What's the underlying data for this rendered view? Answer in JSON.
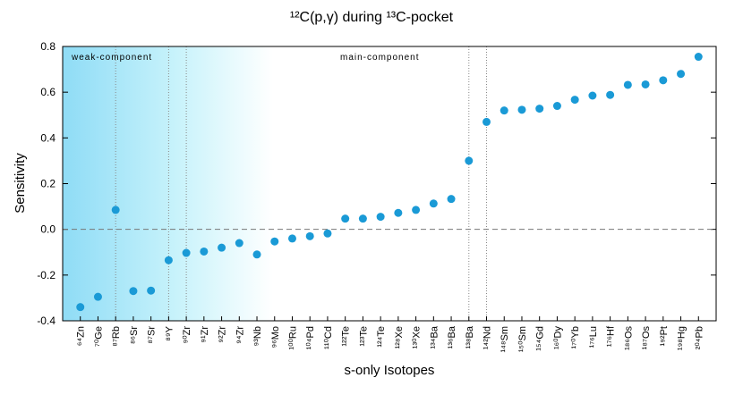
{
  "chart_data": {
    "type": "scatter",
    "title": "¹²C(p,γ) during ¹³C-pocket",
    "x_label": "s-only Isotopes",
    "y_label": "Sensitivity",
    "annotations": [
      "weak-component",
      "main-component"
    ],
    "categories": [
      "⁶⁴Zn",
      "⁷⁰Ge",
      "⁸⁷Rb",
      "⁸⁶Sr",
      "⁸⁷Sr",
      "⁸⁹Y",
      "⁹⁰Zr",
      "⁹¹Zr",
      "⁹²Zr",
      "⁹⁴Zr",
      "⁹³Nb",
      "⁹⁶Mo",
      "¹⁰⁰Ru",
      "¹⁰⁴Pd",
      "¹¹⁰Cd",
      "¹²²Te",
      "¹²³Te",
      "¹²⁴Te",
      "¹²⁸Xe",
      "¹³⁰Xe",
      "¹³⁴Ba",
      "¹³⁶Ba",
      "¹³⁸Ba",
      "¹⁴²Nd",
      "¹⁴⁸Sm",
      "¹⁵⁰Sm",
      "¹⁵⁴Gd",
      "¹⁶⁰Dy",
      "¹⁷⁰Yb",
      "¹⁷⁶Lu",
      "¹⁷⁶Hf",
      "¹⁸⁶Os",
      "¹⁸⁷Os",
      "¹⁹²Pt",
      "¹⁹⁸Hg",
      "²⁰⁴Pb"
    ],
    "values": [
      -0.34,
      -0.295,
      0.085,
      -0.27,
      -0.268,
      -0.135,
      -0.103,
      -0.097,
      -0.08,
      -0.06,
      -0.11,
      -0.053,
      -0.04,
      -0.03,
      -0.018,
      0.047,
      0.047,
      0.055,
      0.072,
      0.085,
      0.113,
      0.133,
      0.3,
      0.47,
      0.52,
      0.523,
      0.528,
      0.54,
      0.567,
      0.585,
      0.588,
      0.632,
      0.634,
      0.652,
      0.68,
      0.755
    ],
    "color": "#1a9ad6",
    "ylim": [
      -0.4,
      0.8
    ],
    "yticks": [
      -0.4,
      -0.2,
      {
        "value": 0,
        "label": "0.0"
      },
      0.2,
      0.4,
      0.6,
      0.8
    ]
  }
}
